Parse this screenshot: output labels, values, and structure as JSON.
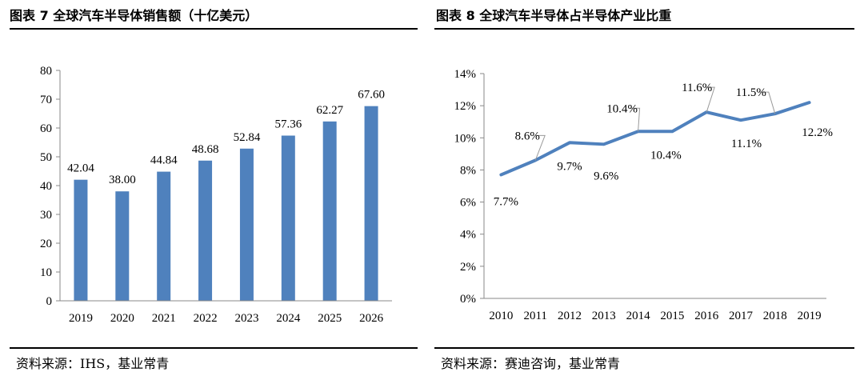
{
  "left": {
    "title": "图表 7  全球汽车半导体销售额（十亿美元）",
    "source": "资料来源：IHS，基业常青"
  },
  "right": {
    "title": "图表 8  全球汽车半导体占半导体产业比重",
    "source": "资料来源：赛迪咨询，基业常青"
  },
  "chart_data": [
    {
      "type": "bar",
      "title": "",
      "categories": [
        "2019",
        "2020",
        "2021",
        "2022",
        "2023",
        "2024",
        "2025",
        "2026"
      ],
      "values": [
        42.04,
        38.0,
        44.84,
        48.68,
        52.84,
        57.36,
        62.27,
        67.6
      ],
      "value_labels": [
        "42.04",
        "38.00",
        "44.84",
        "48.68",
        "52.84",
        "57.36",
        "62.27",
        "67.60"
      ],
      "ylim": [
        0,
        80
      ],
      "yticks": [
        0,
        10,
        20,
        30,
        40,
        50,
        60,
        70,
        80
      ],
      "xlabel": "",
      "ylabel": "",
      "grid": false,
      "color": "#4f81bd"
    },
    {
      "type": "line",
      "title": "",
      "categories": [
        "2010",
        "2011",
        "2012",
        "2013",
        "2014",
        "2015",
        "2016",
        "2017",
        "2018",
        "2019"
      ],
      "values": [
        7.7,
        8.6,
        9.7,
        9.6,
        10.4,
        10.4,
        11.6,
        11.1,
        11.5,
        12.2
      ],
      "value_labels": [
        "7.7%",
        "8.6%",
        "9.7%",
        "9.6%",
        "10.4%",
        "10.4%",
        "11.6%",
        "11.1%",
        "11.5%",
        "12.2%"
      ],
      "ylim": [
        0,
        14
      ],
      "yticks": [
        0,
        2,
        4,
        6,
        8,
        10,
        12,
        14
      ],
      "ytick_labels": [
        "0%",
        "2%",
        "4%",
        "6%",
        "8%",
        "10%",
        "12%",
        "14%"
      ],
      "xlabel": "",
      "ylabel": "",
      "grid": false,
      "color": "#4f81bd"
    }
  ]
}
